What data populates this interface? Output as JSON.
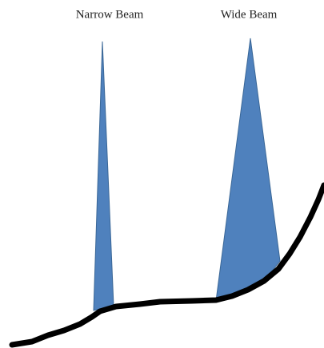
{
  "beams": [
    {
      "label": "Narrow Beam"
    },
    {
      "label": "Wide Beam"
    }
  ]
}
